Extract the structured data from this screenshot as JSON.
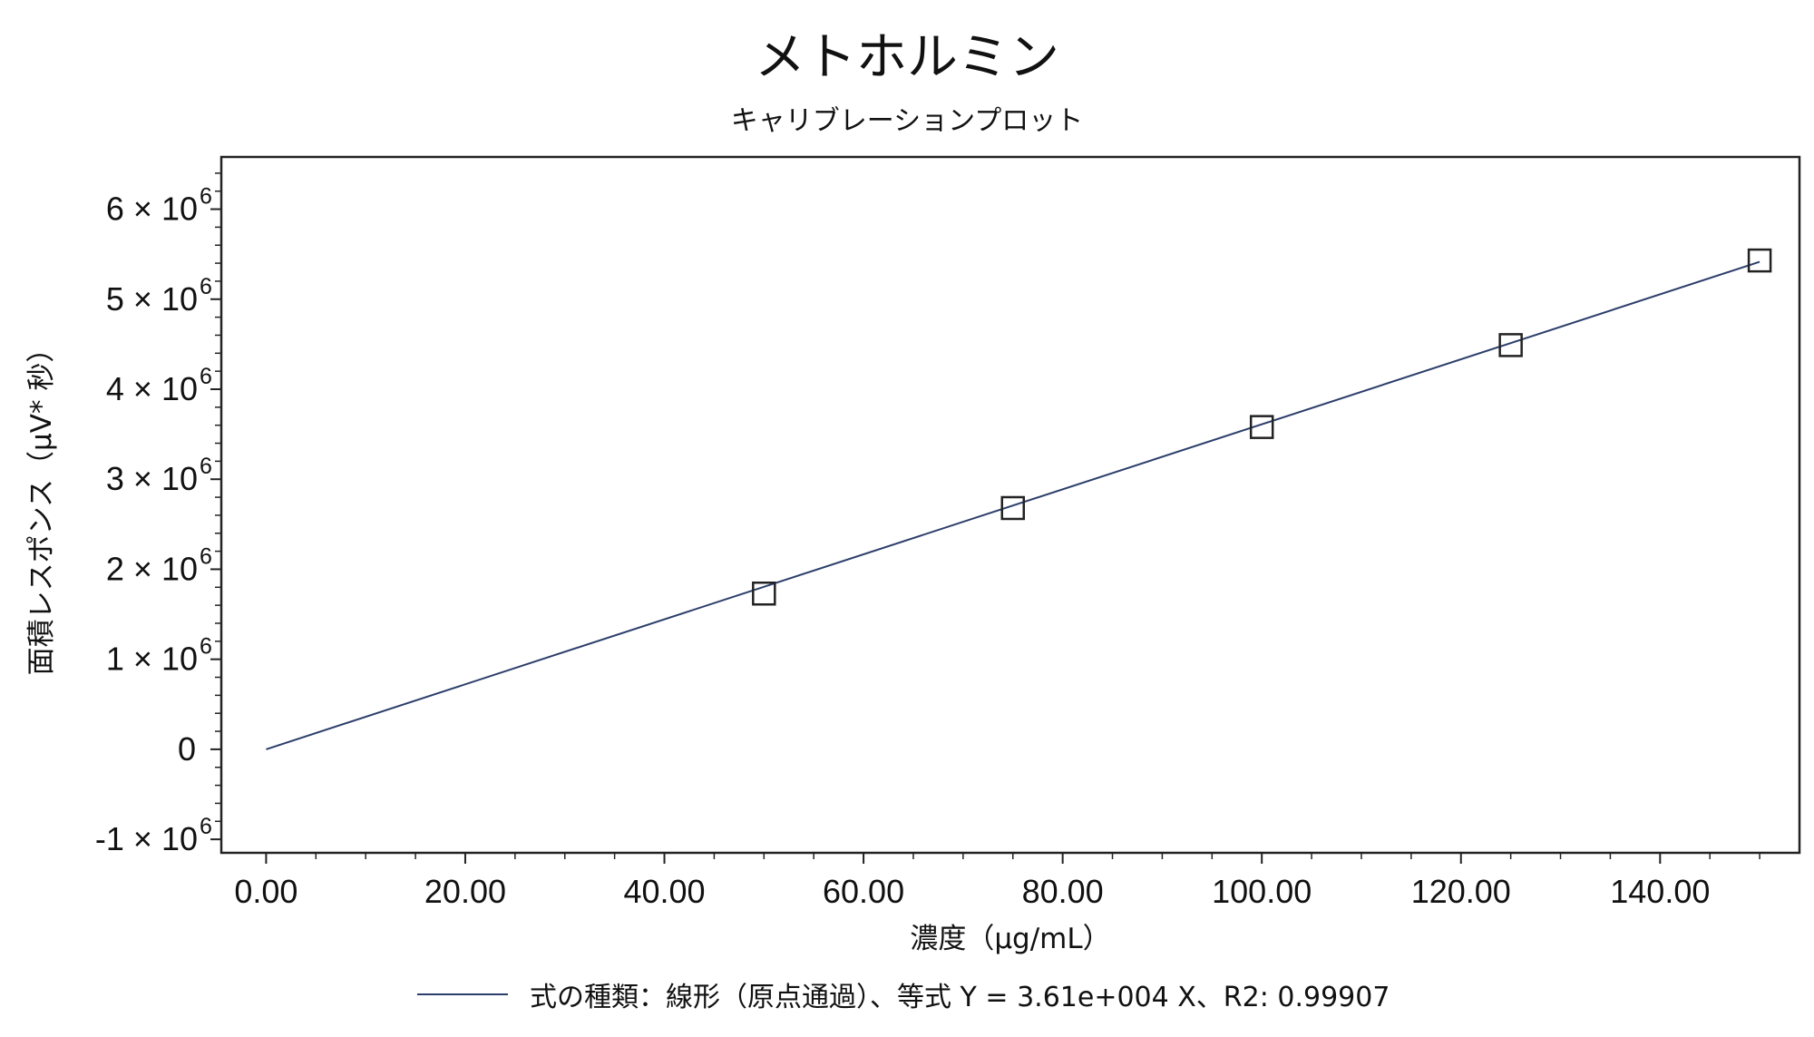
{
  "chart_data": {
    "type": "scatter",
    "title": "メトホルミン",
    "subtitle": "キャリブレーションプロット",
    "xlabel": "濃度（μg/mL）",
    "ylabel": "面積レスポンス（μV* 秒）",
    "xlim": [
      -4.5,
      154
    ],
    "ylim": [
      -1150000,
      6580000
    ],
    "x_ticks": [
      0,
      20,
      40,
      60,
      80,
      100,
      120,
      140
    ],
    "x_tick_labels": [
      "0.00",
      "20.00",
      "40.00",
      "60.00",
      "80.00",
      "100.00",
      "120.00",
      "140.00"
    ],
    "y_ticks": [
      -1000000,
      0,
      1000000,
      2000000,
      3000000,
      4000000,
      5000000,
      6000000
    ],
    "y_tick_labels": [
      {
        "mantissa": "-1 × 10",
        "exp": "6"
      },
      {
        "mantissa": "0",
        "exp": ""
      },
      {
        "mantissa": "1 × 10",
        "exp": "6"
      },
      {
        "mantissa": "2 × 10",
        "exp": "6"
      },
      {
        "mantissa": "3 × 10",
        "exp": "6"
      },
      {
        "mantissa": "4 × 10",
        "exp": "6"
      },
      {
        "mantissa": "5 × 10",
        "exp": "6"
      },
      {
        "mantissa": "6 × 10",
        "exp": "6"
      }
    ],
    "points": [
      {
        "x": 50,
        "y": 1730000
      },
      {
        "x": 75,
        "y": 2680000
      },
      {
        "x": 100,
        "y": 3580000
      },
      {
        "x": 125,
        "y": 4490000
      },
      {
        "x": 150,
        "y": 5430000
      }
    ],
    "fit_line": {
      "slope": 36100,
      "intercept": 0,
      "x_start": 0,
      "x_end": 150
    },
    "legend": {
      "label": "式の種類：線形（原点通過）、等式 Y = 3.61e+004 X、R2: 0.99907",
      "placement": "bottom"
    },
    "grid": false,
    "colors": {
      "line": "#2c3e6b",
      "marker": "#222222",
      "axis": "#222222"
    }
  }
}
